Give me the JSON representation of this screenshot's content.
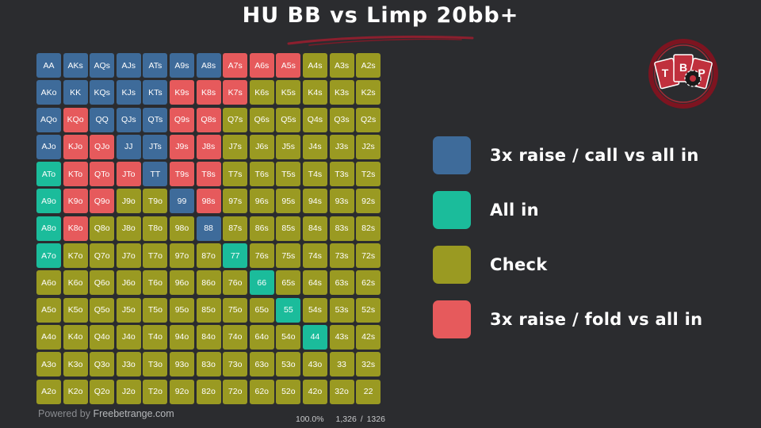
{
  "title": "HU BB vs Limp 20bb+",
  "colors": {
    "b": "#3e6b9a",
    "t": "#1bbc9b",
    "o": "#9a9a22",
    "r": "#e65a5c",
    "background": "#2b2c2f"
  },
  "matrix": {
    "cells": [
      [
        [
          "AA",
          "b"
        ],
        [
          "AKs",
          "b"
        ],
        [
          "AQs",
          "b"
        ],
        [
          "AJs",
          "b"
        ],
        [
          "ATs",
          "b"
        ],
        [
          "A9s",
          "b"
        ],
        [
          "A8s",
          "b"
        ],
        [
          "A7s",
          "r"
        ],
        [
          "A6s",
          "r"
        ],
        [
          "A5s",
          "r"
        ],
        [
          "A4s",
          "o"
        ],
        [
          "A3s",
          "o"
        ],
        [
          "A2s",
          "o"
        ]
      ],
      [
        [
          "AKo",
          "b"
        ],
        [
          "KK",
          "b"
        ],
        [
          "KQs",
          "b"
        ],
        [
          "KJs",
          "b"
        ],
        [
          "KTs",
          "b"
        ],
        [
          "K9s",
          "r"
        ],
        [
          "K8s",
          "r"
        ],
        [
          "K7s",
          "r"
        ],
        [
          "K6s",
          "o"
        ],
        [
          "K5s",
          "o"
        ],
        [
          "K4s",
          "o"
        ],
        [
          "K3s",
          "o"
        ],
        [
          "K2s",
          "o"
        ]
      ],
      [
        [
          "AQo",
          "b"
        ],
        [
          "KQo",
          "r"
        ],
        [
          "QQ",
          "b"
        ],
        [
          "QJs",
          "b"
        ],
        [
          "QTs",
          "b"
        ],
        [
          "Q9s",
          "r"
        ],
        [
          "Q8s",
          "r"
        ],
        [
          "Q7s",
          "o"
        ],
        [
          "Q6s",
          "o"
        ],
        [
          "Q5s",
          "o"
        ],
        [
          "Q4s",
          "o"
        ],
        [
          "Q3s",
          "o"
        ],
        [
          "Q2s",
          "o"
        ]
      ],
      [
        [
          "AJo",
          "b"
        ],
        [
          "KJo",
          "r"
        ],
        [
          "QJo",
          "r"
        ],
        [
          "JJ",
          "b"
        ],
        [
          "JTs",
          "b"
        ],
        [
          "J9s",
          "r"
        ],
        [
          "J8s",
          "r"
        ],
        [
          "J7s",
          "o"
        ],
        [
          "J6s",
          "o"
        ],
        [
          "J5s",
          "o"
        ],
        [
          "J4s",
          "o"
        ],
        [
          "J3s",
          "o"
        ],
        [
          "J2s",
          "o"
        ]
      ],
      [
        [
          "ATo",
          "t"
        ],
        [
          "KTo",
          "r"
        ],
        [
          "QTo",
          "r"
        ],
        [
          "JTo",
          "r"
        ],
        [
          "TT",
          "b"
        ],
        [
          "T9s",
          "r"
        ],
        [
          "T8s",
          "r"
        ],
        [
          "T7s",
          "o"
        ],
        [
          "T6s",
          "o"
        ],
        [
          "T5s",
          "o"
        ],
        [
          "T4s",
          "o"
        ],
        [
          "T3s",
          "o"
        ],
        [
          "T2s",
          "o"
        ]
      ],
      [
        [
          "A9o",
          "t"
        ],
        [
          "K9o",
          "r"
        ],
        [
          "Q9o",
          "r"
        ],
        [
          "J9o",
          "o"
        ],
        [
          "T9o",
          "o"
        ],
        [
          "99",
          "b"
        ],
        [
          "98s",
          "r"
        ],
        [
          "97s",
          "o"
        ],
        [
          "96s",
          "o"
        ],
        [
          "95s",
          "o"
        ],
        [
          "94s",
          "o"
        ],
        [
          "93s",
          "o"
        ],
        [
          "92s",
          "o"
        ]
      ],
      [
        [
          "A8o",
          "t"
        ],
        [
          "K8o",
          "r"
        ],
        [
          "Q8o",
          "o"
        ],
        [
          "J8o",
          "o"
        ],
        [
          "T8o",
          "o"
        ],
        [
          "98o",
          "o"
        ],
        [
          "88",
          "b"
        ],
        [
          "87s",
          "o"
        ],
        [
          "86s",
          "o"
        ],
        [
          "85s",
          "o"
        ],
        [
          "84s",
          "o"
        ],
        [
          "83s",
          "o"
        ],
        [
          "82s",
          "o"
        ]
      ],
      [
        [
          "A7o",
          "t"
        ],
        [
          "K7o",
          "o"
        ],
        [
          "Q7o",
          "o"
        ],
        [
          "J7o",
          "o"
        ],
        [
          "T7o",
          "o"
        ],
        [
          "97o",
          "o"
        ],
        [
          "87o",
          "o"
        ],
        [
          "77",
          "t"
        ],
        [
          "76s",
          "o"
        ],
        [
          "75s",
          "o"
        ],
        [
          "74s",
          "o"
        ],
        [
          "73s",
          "o"
        ],
        [
          "72s",
          "o"
        ]
      ],
      [
        [
          "A6o",
          "o"
        ],
        [
          "K6o",
          "o"
        ],
        [
          "Q6o",
          "o"
        ],
        [
          "J6o",
          "o"
        ],
        [
          "T6o",
          "o"
        ],
        [
          "96o",
          "o"
        ],
        [
          "86o",
          "o"
        ],
        [
          "76o",
          "o"
        ],
        [
          "66",
          "t"
        ],
        [
          "65s",
          "o"
        ],
        [
          "64s",
          "o"
        ],
        [
          "63s",
          "o"
        ],
        [
          "62s",
          "o"
        ]
      ],
      [
        [
          "A5o",
          "o"
        ],
        [
          "K5o",
          "o"
        ],
        [
          "Q5o",
          "o"
        ],
        [
          "J5o",
          "o"
        ],
        [
          "T5o",
          "o"
        ],
        [
          "95o",
          "o"
        ],
        [
          "85o",
          "o"
        ],
        [
          "75o",
          "o"
        ],
        [
          "65o",
          "o"
        ],
        [
          "55",
          "t"
        ],
        [
          "54s",
          "o"
        ],
        [
          "53s",
          "o"
        ],
        [
          "52s",
          "o"
        ]
      ],
      [
        [
          "A4o",
          "o"
        ],
        [
          "K4o",
          "o"
        ],
        [
          "Q4o",
          "o"
        ],
        [
          "J4o",
          "o"
        ],
        [
          "T4o",
          "o"
        ],
        [
          "94o",
          "o"
        ],
        [
          "84o",
          "o"
        ],
        [
          "74o",
          "o"
        ],
        [
          "64o",
          "o"
        ],
        [
          "54o",
          "o"
        ],
        [
          "44",
          "t"
        ],
        [
          "43s",
          "o"
        ],
        [
          "42s",
          "o"
        ]
      ],
      [
        [
          "A3o",
          "o"
        ],
        [
          "K3o",
          "o"
        ],
        [
          "Q3o",
          "o"
        ],
        [
          "J3o",
          "o"
        ],
        [
          "T3o",
          "o"
        ],
        [
          "93o",
          "o"
        ],
        [
          "83o",
          "o"
        ],
        [
          "73o",
          "o"
        ],
        [
          "63o",
          "o"
        ],
        [
          "53o",
          "o"
        ],
        [
          "43o",
          "o"
        ],
        [
          "33",
          "o"
        ],
        [
          "32s",
          "o"
        ]
      ],
      [
        [
          "A2o",
          "o"
        ],
        [
          "K2o",
          "o"
        ],
        [
          "Q2o",
          "o"
        ],
        [
          "J2o",
          "o"
        ],
        [
          "T2o",
          "o"
        ],
        [
          "92o",
          "o"
        ],
        [
          "82o",
          "o"
        ],
        [
          "72o",
          "o"
        ],
        [
          "62o",
          "o"
        ],
        [
          "52o",
          "o"
        ],
        [
          "42o",
          "o"
        ],
        [
          "32o",
          "o"
        ],
        [
          "22",
          "o"
        ]
      ]
    ]
  },
  "footer": {
    "powered_prefix": "Powered by",
    "powered_site": "Freebetrange.com",
    "percent": "100.0%",
    "combos": "1,326 / 1326"
  },
  "logo": {
    "letters": [
      "T",
      "B",
      "P"
    ],
    "icon": "tbp-logo-icon"
  },
  "legend": [
    {
      "color": "#3e6b9a",
      "label": "3x raise / call vs all in"
    },
    {
      "color": "#1bbc9b",
      "label": "All in"
    },
    {
      "color": "#9a9a22",
      "label": "Check"
    },
    {
      "color": "#e65a5c",
      "label": "3x raise / fold vs all in"
    }
  ]
}
